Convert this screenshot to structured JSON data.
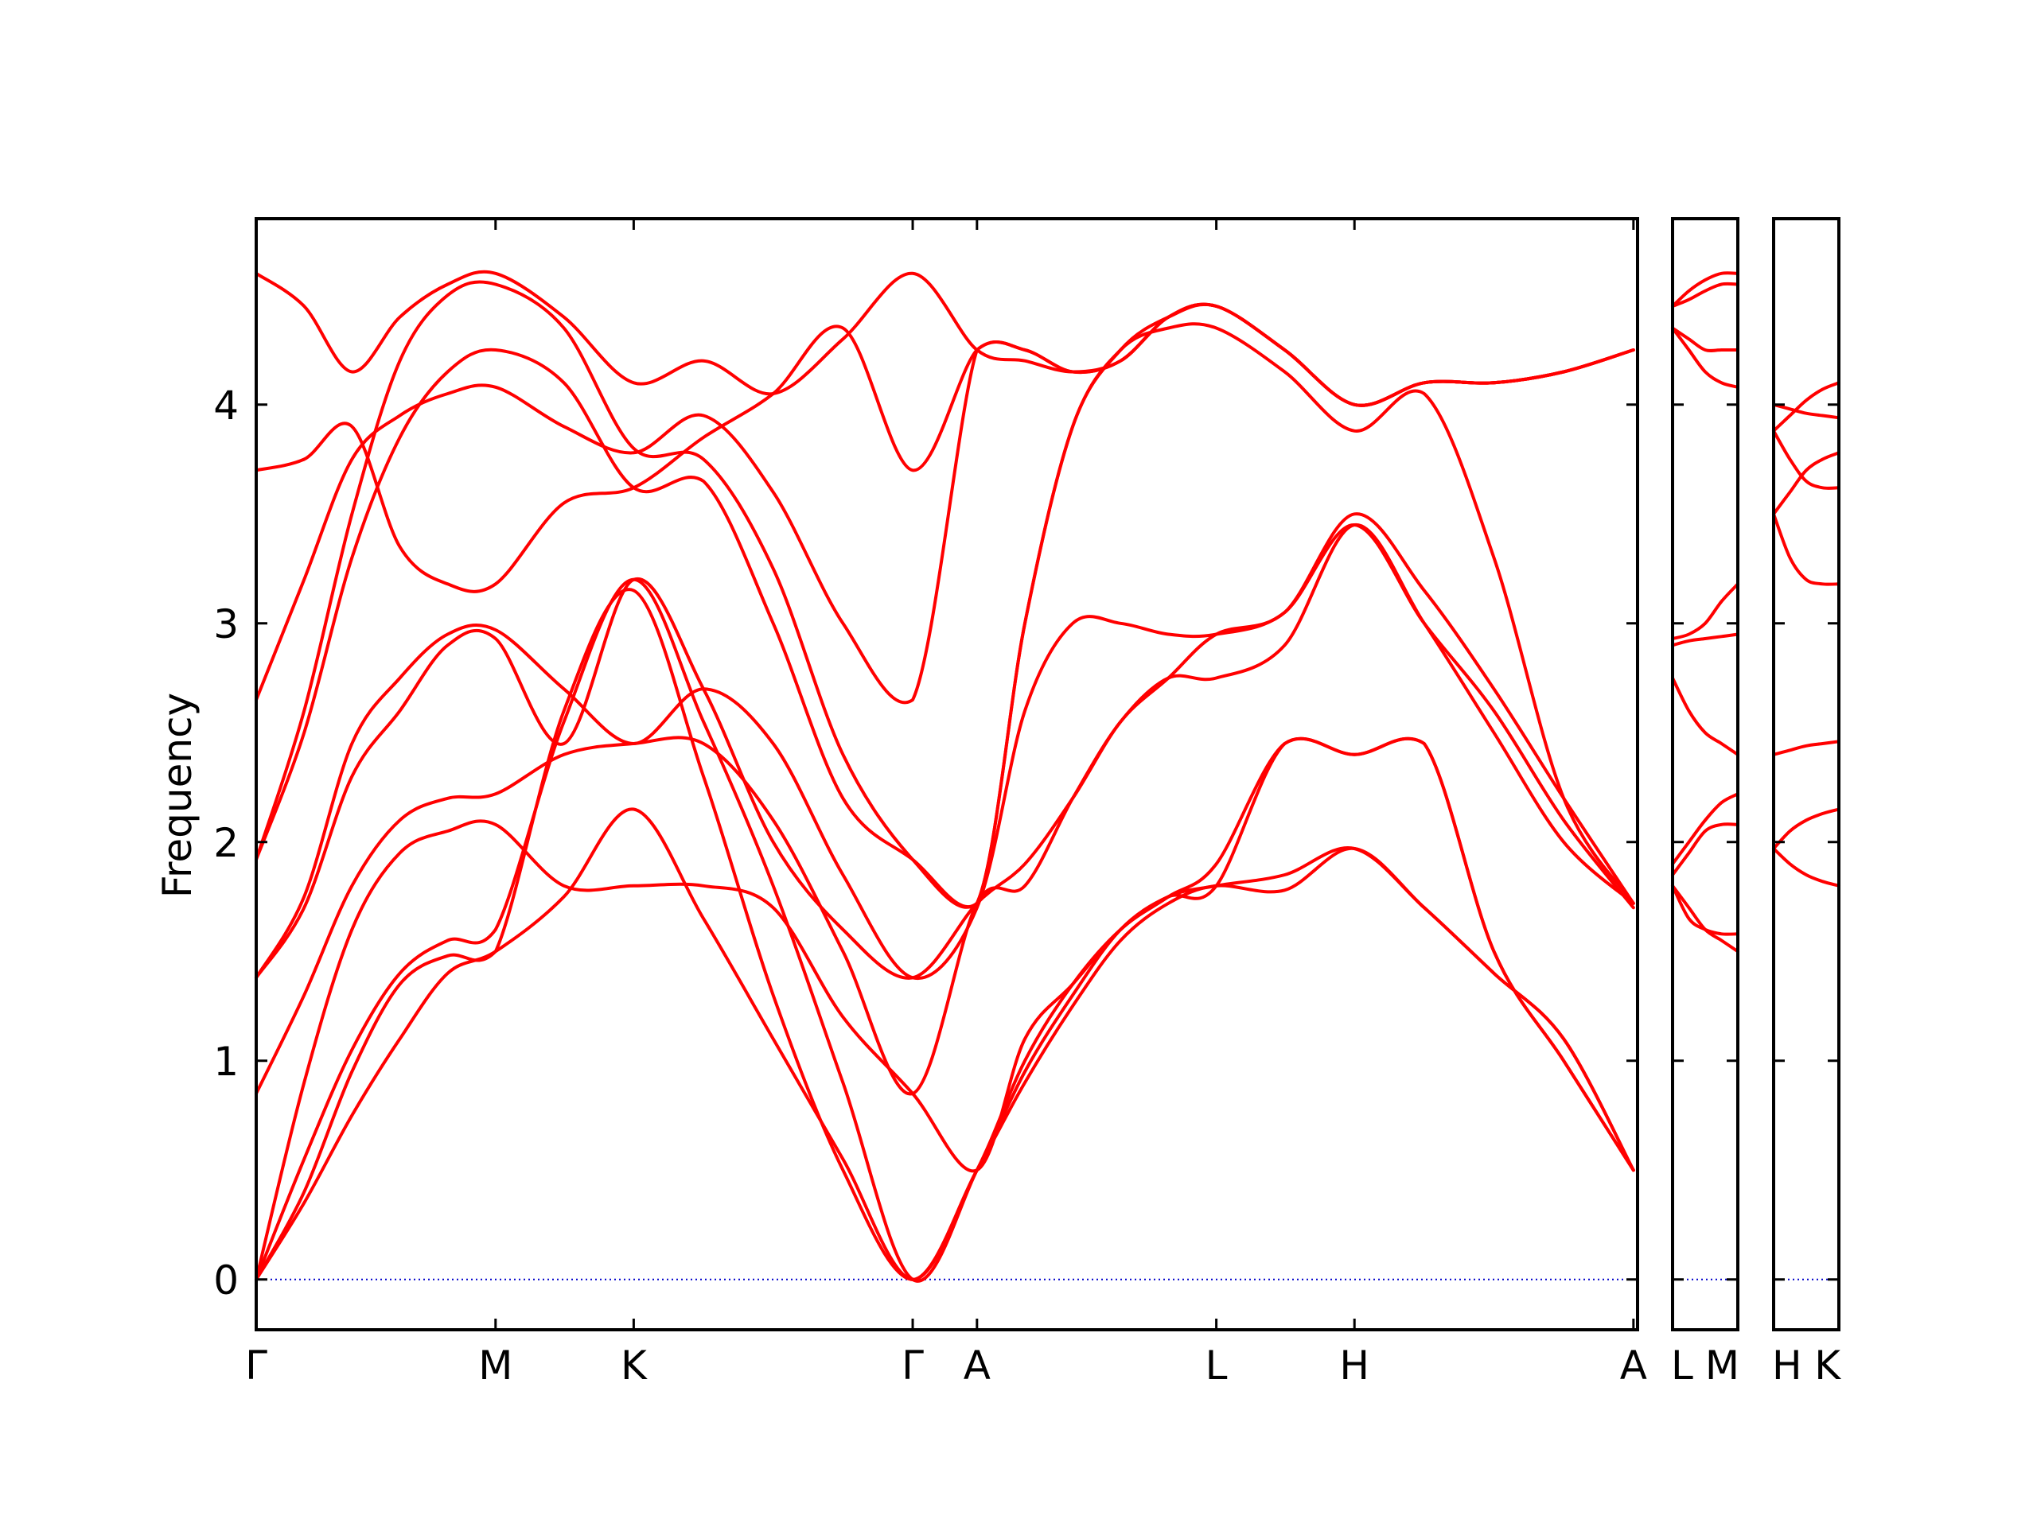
{
  "chart_data": {
    "type": "line",
    "title": "",
    "xlabel": "",
    "ylabel": "Frequency",
    "ylim": [
      -0.23,
      4.85
    ],
    "yticks": [
      0,
      1,
      2,
      3,
      4
    ],
    "grid": false,
    "band_color": "#ff0000",
    "zero_line_color": "#0000cc",
    "panels": [
      {
        "x_range": [
          0,
          10.1
        ],
        "ticks": [
          {
            "x": 0,
            "label": "Γ"
          },
          {
            "x": 1.75,
            "label": "M"
          },
          {
            "x": 2.76,
            "label": "K"
          },
          {
            "x": 4.8,
            "label": "Γ"
          },
          {
            "x": 5.27,
            "label": "A"
          },
          {
            "x": 7.02,
            "label": "L"
          },
          {
            "x": 8.03,
            "label": "H"
          },
          {
            "x": 10.07,
            "label": "A"
          }
        ],
        "x": [
          0,
          0.35,
          0.7,
          1.05,
          1.4,
          1.75,
          2.25,
          2.76,
          3.27,
          3.78,
          4.29,
          4.8,
          5.27,
          5.62,
          5.97,
          6.32,
          6.67,
          7.02,
          7.52,
          8.03,
          8.54,
          9.05,
          9.56,
          10.07
        ],
        "series": [
          {
            "values": [
              0,
              0.35,
              0.75,
              1.1,
              1.4,
              1.5,
              1.75,
              2.15,
              1.65,
              1.1,
              0.55,
              0,
              0.5,
              0.95,
              1.3,
              1.6,
              1.75,
              1.8,
              1.85,
              1.97,
              1.7,
              1.4,
              1.1,
              0.5
            ]
          },
          {
            "values": [
              0,
              0.55,
              1.05,
              1.4,
              1.55,
              1.6,
              2.55,
              3.2,
              2.55,
              1.8,
              0.9,
              0,
              0.5,
              1.0,
              1.35,
              1.6,
              1.75,
              1.9,
              2.45,
              2.4,
              2.45,
              1.5,
              1.0,
              0.5
            ]
          },
          {
            "values": [
              0,
              0.9,
              1.6,
              1.95,
              2.05,
              2.08,
              1.8,
              1.8,
              1.8,
              1.7,
              1.2,
              0.85,
              0.5,
              1.1,
              1.35,
              1.6,
              1.75,
              1.8,
              2.45,
              2.4,
              2.45,
              1.5,
              1.0,
              0.5
            ]
          },
          {
            "values": [
              0.85,
              1.3,
              1.8,
              2.1,
              2.2,
              2.22,
              2.4,
              2.45,
              2.45,
              2.1,
              1.5,
              0.85,
              1.72,
              1.8,
              2.2,
              2.55,
              2.75,
              2.75,
              2.9,
              3.45,
              3.0,
              2.5,
              2.0,
              1.72
            ]
          },
          {
            "values": [
              1.38,
              1.7,
              2.3,
              2.6,
              2.9,
              2.93,
              2.45,
              3.2,
              2.7,
              2.0,
              1.6,
              1.38,
              1.72,
              1.9,
              2.2,
              2.55,
              2.75,
              2.95,
              3.05,
              3.5,
              3.15,
              2.7,
              2.2,
              1.72
            ]
          },
          {
            "values": [
              1.38,
              1.75,
              2.45,
              2.75,
              2.95,
              2.97,
              2.7,
              2.45,
              2.7,
              2.45,
              1.85,
              1.38,
              1.7,
              2.6,
              3.0,
              3.0,
              2.95,
              2.95,
              3.05,
              3.45,
              3.0,
              2.6,
              2.1,
              1.7
            ]
          },
          {
            "values": [
              1.92,
              2.5,
              3.3,
              3.85,
              4.15,
              4.25,
              4.1,
              3.62,
              3.65,
              3.0,
              2.2,
              1.92,
              1.72,
              3.0,
              3.9,
              4.25,
              4.35,
              4.35,
              4.15,
              3.88,
              4.05,
              3.3,
              2.2,
              1.72
            ]
          },
          {
            "values": [
              1.92,
              2.6,
              3.5,
              4.2,
              4.5,
              4.55,
              4.35,
              3.8,
              3.75,
              3.25,
              2.4,
              1.92,
              1.72,
              3.0,
              3.9,
              4.25,
              4.4,
              4.45,
              4.25,
              4.0,
              4.1,
              4.1,
              4.15,
              4.25
            ]
          },
          {
            "values": [
              2.65,
              3.2,
              3.75,
              3.95,
              4.05,
              4.08,
              3.9,
              3.78,
              3.95,
              3.6,
              3.0,
              2.65,
              4.25,
              4.25,
              4.15,
              4.2,
              4.4,
              4.45,
              4.25,
              4.0,
              4.1,
              4.1,
              4.15,
              4.25
            ]
          },
          {
            "values": [
              3.7,
              3.75,
              3.9,
              3.35,
              3.18,
              3.18,
              3.55,
              3.62,
              3.85,
              4.05,
              4.35,
              3.7,
              4.25,
              4.25,
              4.15,
              4.2,
              4.4,
              4.45,
              4.25,
              4.0,
              4.1,
              4.1,
              4.15,
              4.25
            ]
          },
          {
            "values": [
              4.6,
              4.45,
              4.15,
              4.4,
              4.55,
              4.6,
              4.4,
              4.1,
              4.2,
              4.05,
              4.3,
              4.6,
              4.25,
              4.2,
              4.15,
              4.2,
              4.4,
              4.45,
              4.25,
              4.0,
              4.1,
              4.1,
              4.15,
              4.25
            ]
          },
          {
            "values": [
              0,
              0.4,
              0.95,
              1.35,
              1.48,
              1.5,
              2.6,
              3.15,
              2.3,
              1.3,
              0.5,
              0,
              0.5,
              0.9,
              1.25,
              1.55,
              1.72,
              1.8,
              1.78,
              1.97,
              1.7,
              1.4,
              1.1,
              0.5
            ]
          }
        ]
      },
      {
        "x_range": [
          0,
          1
        ],
        "ticks": [
          {
            "x": 0,
            "label": "L"
          },
          {
            "x": 1,
            "label": "M"
          }
        ],
        "x": [
          0,
          0.25,
          0.5,
          0.75,
          1
        ],
        "series": [
          {
            "values": [
              1.8,
              1.7,
              1.6,
              1.55,
              1.5
            ]
          },
          {
            "values": [
              1.8,
              1.65,
              1.6,
              1.58,
              1.58
            ]
          },
          {
            "values": [
              1.85,
              1.95,
              2.05,
              2.08,
              2.08
            ]
          },
          {
            "values": [
              1.9,
              2.0,
              2.1,
              2.18,
              2.22
            ]
          },
          {
            "values": [
              2.75,
              2.6,
              2.5,
              2.45,
              2.4
            ]
          },
          {
            "values": [
              2.9,
              2.92,
              2.93,
              2.94,
              2.95
            ]
          },
          {
            "values": [
              2.93,
              2.95,
              3.0,
              3.1,
              3.18
            ]
          },
          {
            "values": [
              4.35,
              4.3,
              4.25,
              4.25,
              4.25
            ]
          },
          {
            "values": [
              4.35,
              4.25,
              4.15,
              4.1,
              4.08
            ]
          },
          {
            "values": [
              4.45,
              4.48,
              4.52,
              4.55,
              4.55
            ]
          },
          {
            "values": [
              4.45,
              4.52,
              4.57,
              4.6,
              4.6
            ]
          }
        ]
      },
      {
        "x_range": [
          0,
          1
        ],
        "ticks": [
          {
            "x": 0,
            "label": "H"
          },
          {
            "x": 1,
            "label": "K"
          }
        ],
        "x": [
          0,
          0.25,
          0.5,
          0.75,
          1
        ],
        "series": [
          {
            "values": [
              1.97,
              1.9,
              1.85,
              1.82,
              1.8
            ]
          },
          {
            "values": [
              1.97,
              2.05,
              2.1,
              2.13,
              2.15
            ]
          },
          {
            "values": [
              2.4,
              2.42,
              2.44,
              2.45,
              2.46
            ]
          },
          {
            "values": [
              3.5,
              3.3,
              3.2,
              3.18,
              3.18
            ]
          },
          {
            "values": [
              3.5,
              3.6,
              3.7,
              3.75,
              3.78
            ]
          },
          {
            "values": [
              3.88,
              3.75,
              3.65,
              3.62,
              3.62
            ]
          },
          {
            "values": [
              3.88,
              3.95,
              4.02,
              4.07,
              4.1
            ]
          },
          {
            "values": [
              4.0,
              3.98,
              3.96,
              3.95,
              3.94
            ]
          }
        ]
      }
    ]
  }
}
